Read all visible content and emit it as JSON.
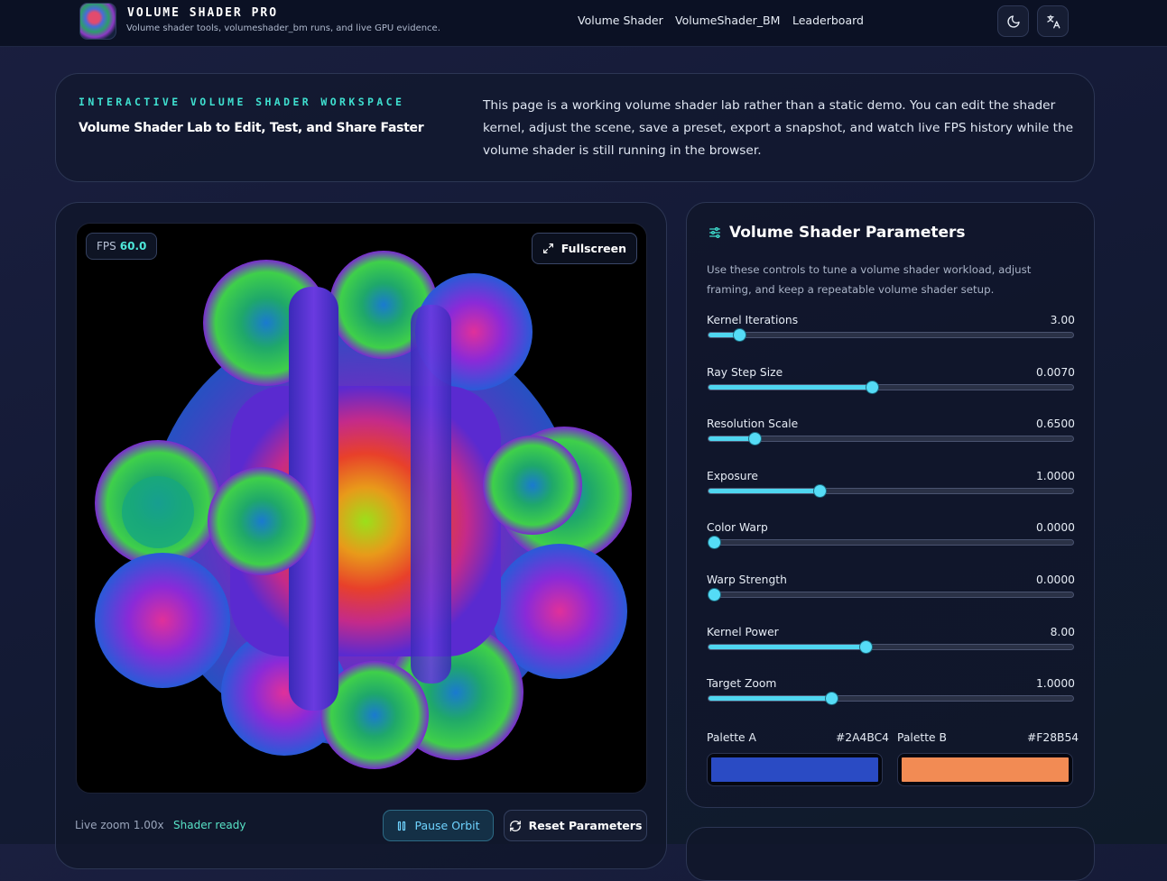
{
  "header": {
    "brand_title": "VOLUME SHADER PRO",
    "brand_subtitle": "Volume shader tools, volumeshader_bm runs, and live GPU evidence.",
    "nav": [
      "Volume Shader",
      "VolumeShader_BM",
      "Leaderboard"
    ],
    "icons": [
      "moon-icon",
      "translate-icon"
    ]
  },
  "hero": {
    "eyebrow": "INTERACTIVE VOLUME SHADER WORKSPACE",
    "title": "Volume Shader Lab to Edit, Test, and Share Faster",
    "text": "This page is a working volume shader lab rather than a static demo. You can edit the shader kernel, adjust the scene, save a preset, export a snapshot, and watch live FPS history while the volume shader is still running in the browser."
  },
  "viewer": {
    "fps_label": "FPS",
    "fps_value": "60.0",
    "fullscreen_label": "Fullscreen",
    "live_zoom": "Live zoom 1.00x",
    "status": "Shader ready",
    "pause_label": "Pause Orbit",
    "reset_label": "Reset Parameters"
  },
  "params": {
    "title": "Volume Shader Parameters",
    "description": "Use these controls to tune a volume shader workload, adjust framing, and keep a repeatable volume shader setup.",
    "sliders": [
      {
        "label": "Kernel Iterations",
        "value": "3.00",
        "fraction": 0.085
      },
      {
        "label": "Ray Step Size",
        "value": "0.0070",
        "fraction": 0.447
      },
      {
        "label": "Resolution Scale",
        "value": "0.6500",
        "fraction": 0.127
      },
      {
        "label": "Exposure",
        "value": "1.0000",
        "fraction": 0.305
      },
      {
        "label": "Color Warp",
        "value": "0.0000",
        "fraction": 0.015
      },
      {
        "label": "Warp Strength",
        "value": "0.0000",
        "fraction": 0.015
      },
      {
        "label": "Kernel Power",
        "value": "8.00",
        "fraction": 0.43
      },
      {
        "label": "Target Zoom",
        "value": "1.0000",
        "fraction": 0.337
      }
    ],
    "palette_a": {
      "label": "Palette A",
      "value": "#2A4BC4",
      "color": "#2A4BC4"
    },
    "palette_b": {
      "label": "Palette B",
      "value": "#F28B54",
      "color": "#F28B54"
    }
  }
}
